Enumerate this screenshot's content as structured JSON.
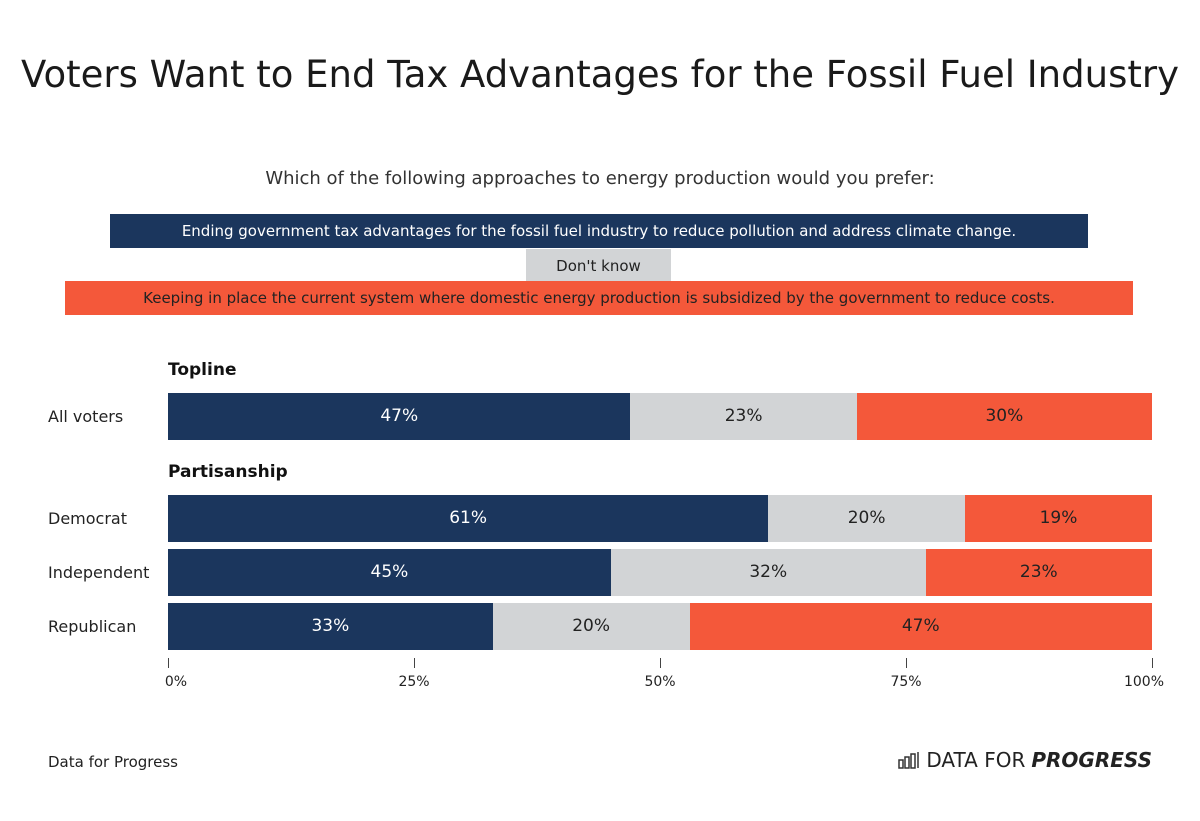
{
  "chart_data": {
    "type": "bar",
    "orientation": "horizontal",
    "stacked": true,
    "title": "Voters Want to End Tax Advantages for the Fossil Fuel Industry",
    "subtitle": "Which of the following approaches to energy production would you prefer:",
    "legend": [
      {
        "label": "Ending government tax advantages for the fossil fuel industry to reduce pollution and address climate change.",
        "color": "#1b365d"
      },
      {
        "label": "Don't know",
        "color": "#d2d4d6"
      },
      {
        "label": "Keeping in place the current system where domestic energy production is subsidized by the government to reduce costs.",
        "color": "#f4583a"
      }
    ],
    "groups": [
      {
        "name": "Topline",
        "rows": [
          {
            "label": "All voters",
            "values": [
              47,
              23,
              30
            ]
          }
        ]
      },
      {
        "name": "Partisanship",
        "rows": [
          {
            "label": "Democrat",
            "values": [
              61,
              20,
              19
            ]
          },
          {
            "label": "Independent",
            "values": [
              45,
              32,
              23
            ]
          },
          {
            "label": "Republican",
            "values": [
              33,
              20,
              47
            ]
          }
        ]
      }
    ],
    "xlim": [
      0,
      100
    ],
    "xticks": [
      "0%",
      "25%",
      "50%",
      "75%",
      "100%"
    ],
    "legend_position": "top"
  },
  "source": "Data for Progress",
  "logo": {
    "text_light": "DATA FOR",
    "text_bold": "PROGRESS"
  }
}
